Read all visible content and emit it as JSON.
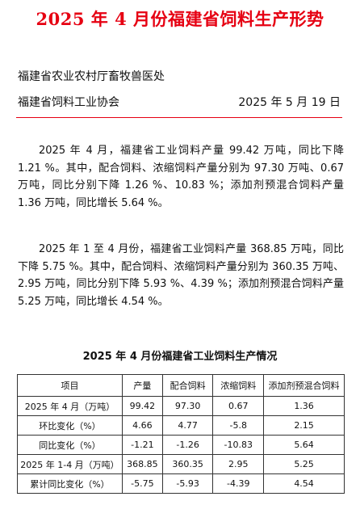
{
  "title": "2025 年 4 月份福建省饲料生产形势",
  "issuer": {
    "dept": "福建省农业农村厅畜牧兽医处",
    "assoc": "福建省饲料工业协会",
    "date": "2025 年 5 月 19 日"
  },
  "paragraphs": [
    "2025 年 4 月，福建省工业饲料产量 99.42 万吨，同比下降 1.21 %。其中，配合饲料、浓缩饲料产量分别为 97.30 万吨、0.67 万吨，同比分别下降 1.26 %、10.83 %；添加剂预混合饲料产量 1.36 万吨，同比增长 5.64 %。",
    "2025 年 1 至 4 月份，福建省工业饲料产量 368.85 万吨，同比下降 5.75 %。其中，配合饲料、浓缩饲料产量分别为 360.35 万吨、2.95 万吨，同比分别下降 5.93 %、4.39 %；添加剂预混合饲料产量 5.25 万吨，同比增长 4.54 %。"
  ],
  "table": {
    "title": "2025 年 4 月份福建省工业饲料生产情况",
    "headers": [
      "项目",
      "产量",
      "配合饲料",
      "浓缩饲料",
      "添加剂预混合饲料"
    ],
    "rows": [
      [
        "2025 年 4 月（万吨）",
        "99.42",
        "97.30",
        "0.67",
        "1.36"
      ],
      [
        "环比变化（%）",
        "4.66",
        "4.77",
        "-5.8",
        "2.15"
      ],
      [
        "同比变化（%）",
        "-1.21",
        "-1.26",
        "-10.83",
        "5.64"
      ],
      [
        "2025 年 1-4 月（万吨）",
        "368.85",
        "360.35",
        "2.95",
        "5.25"
      ],
      [
        "累计同比变化（%）",
        "-5.75",
        "-5.93",
        "-4.39",
        "4.54"
      ]
    ]
  },
  "colors": {
    "title": "#e60012",
    "rule": "#e60012"
  }
}
